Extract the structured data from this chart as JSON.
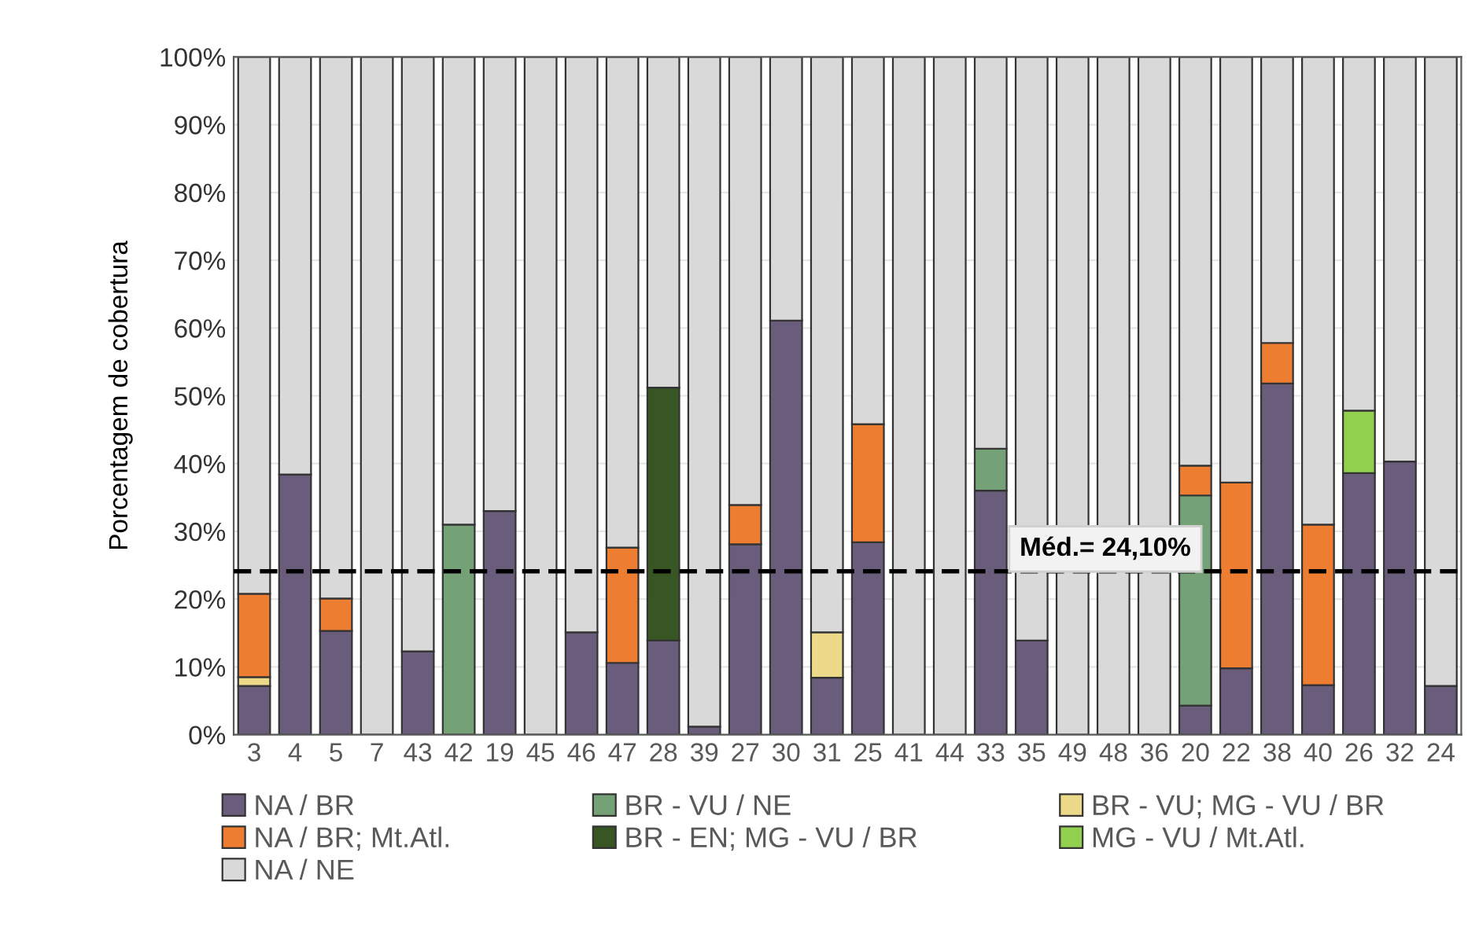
{
  "chart_data": {
    "type": "bar",
    "stacked": true,
    "ylabel": "Porcentagem de cobertura",
    "categories": [
      "3",
      "4",
      "5",
      "7",
      "43",
      "42",
      "19",
      "45",
      "46",
      "47",
      "28",
      "39",
      "27",
      "30",
      "31",
      "25",
      "41",
      "44",
      "33",
      "35",
      "49",
      "48",
      "36",
      "20",
      "22",
      "38",
      "40",
      "26",
      "32",
      "24"
    ],
    "series": [
      {
        "name": "NA / BR",
        "color": "#6a5d7b",
        "values": [
          7.2,
          38.4,
          15.3,
          0,
          12.3,
          0,
          33.0,
          0,
          15.1,
          10.6,
          13.9,
          1.2,
          28.1,
          61.1,
          8.4,
          28.4,
          0,
          0,
          36.0,
          13.9,
          0,
          0,
          0,
          4.3,
          9.8,
          51.8,
          7.3,
          38.6,
          40.3,
          7.2
        ]
      },
      {
        "name": "BR - VU / NE",
        "color": "#74a276",
        "values": [
          0,
          0,
          0,
          0,
          0,
          31.0,
          0,
          0,
          0,
          0,
          0,
          0,
          0,
          0,
          0,
          0,
          0,
          0,
          6.2,
          0,
          0,
          0,
          0,
          31.0,
          0,
          0,
          0,
          0,
          0,
          0
        ]
      },
      {
        "name": "BR - VU; MG - VU / BR",
        "color": "#ecd98a",
        "values": [
          1.3,
          0,
          0,
          0,
          0,
          0,
          0,
          0,
          0,
          0,
          0,
          0,
          0,
          0,
          6.7,
          0,
          0,
          0,
          0,
          0,
          0,
          0,
          0,
          0,
          0,
          0,
          0,
          0,
          0,
          0
        ]
      },
      {
        "name": "NA / BR; Mt.Atl.",
        "color": "#ed7d31",
        "values": [
          12.3,
          0,
          4.8,
          0,
          0,
          0,
          0,
          0,
          0,
          17.0,
          0,
          0,
          5.8,
          0,
          0,
          17.4,
          0,
          0,
          0,
          0,
          0,
          0,
          0,
          4.4,
          27.4,
          6.0,
          23.7,
          0,
          0,
          0
        ]
      },
      {
        "name": "BR - EN; MG - VU / BR",
        "color": "#375623",
        "values": [
          0,
          0,
          0,
          0,
          0,
          0,
          0,
          0,
          0,
          0,
          37.3,
          0,
          0,
          0,
          0,
          0,
          0,
          0,
          0,
          0,
          0,
          0,
          0,
          0,
          0,
          0,
          0,
          0,
          0,
          0
        ]
      },
      {
        "name": "MG - VU / Mt.Atl.",
        "color": "#92d050",
        "values": [
          0,
          0,
          0,
          0,
          0,
          0,
          0,
          0,
          0,
          0,
          0,
          0,
          0,
          0,
          0,
          0,
          0,
          0,
          0,
          0,
          0,
          0,
          0,
          0,
          0,
          0,
          0,
          9.2,
          0,
          0
        ]
      },
      {
        "name": "NA / NE",
        "color": "#d9d9d9",
        "values": [
          79.2,
          61.6,
          79.9,
          100,
          87.7,
          69.0,
          67.0,
          100,
          84.9,
          72.4,
          48.8,
          98.8,
          66.1,
          38.9,
          84.9,
          54.2,
          100,
          100,
          57.8,
          86.1,
          100,
          100,
          100,
          60.3,
          62.8,
          42.2,
          69.0,
          52.2,
          59.7,
          92.8
        ]
      }
    ],
    "ylim": [
      0,
      100
    ],
    "yticks": [
      {
        "value": 0,
        "label": "0%"
      },
      {
        "value": 10,
        "label": "10%"
      },
      {
        "value": 20,
        "label": "20%"
      },
      {
        "value": 30,
        "label": "30%"
      },
      {
        "value": 40,
        "label": "40%"
      },
      {
        "value": 50,
        "label": "50%"
      },
      {
        "value": 60,
        "label": "60%"
      },
      {
        "value": 70,
        "label": "70%"
      },
      {
        "value": 80,
        "label": "80%"
      },
      {
        "value": 90,
        "label": "90%"
      },
      {
        "value": 100,
        "label": "100%"
      }
    ],
    "ref_lines": [
      {
        "axis": "y",
        "value": 24.1,
        "label": "Méd.= 24,10%",
        "color": "#000000",
        "line_style": "dashed"
      }
    ],
    "grid": "y",
    "legend": "bottom"
  }
}
